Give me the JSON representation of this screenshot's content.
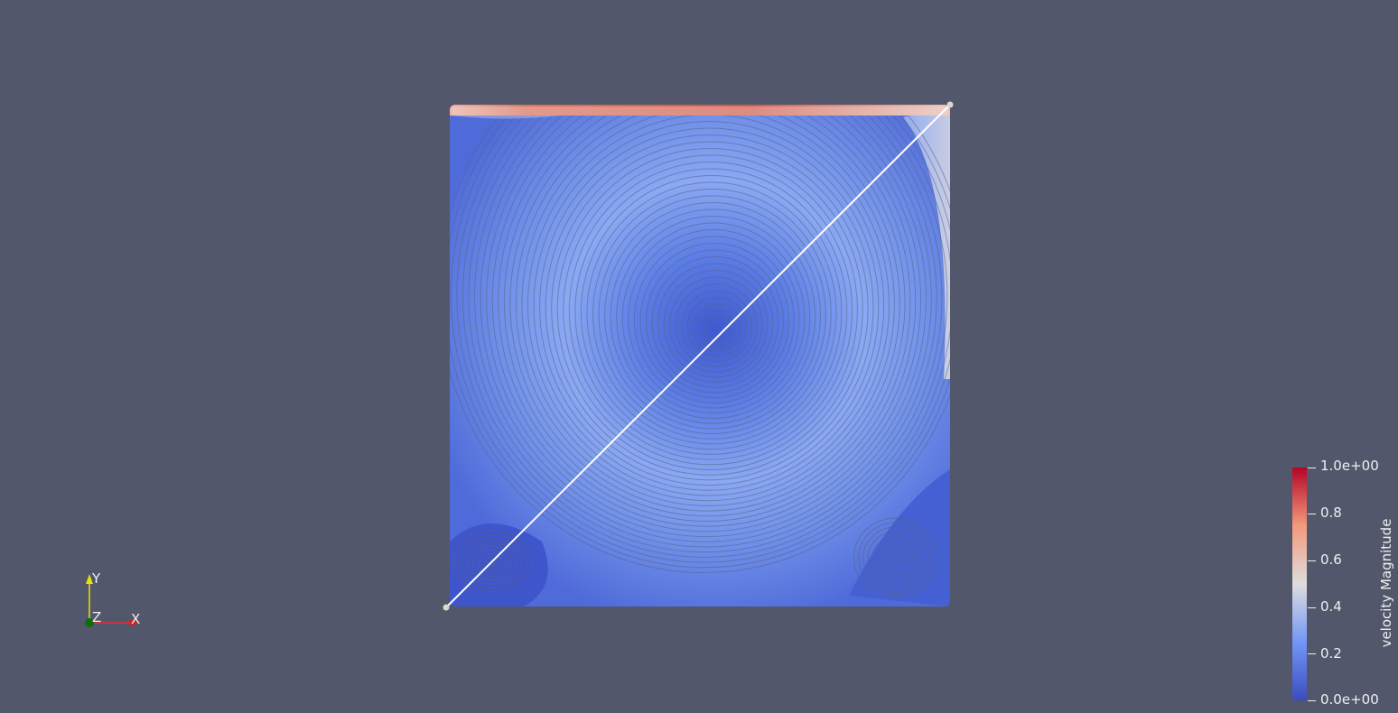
{
  "scene": {
    "background_color": "#52576c",
    "stream_colors": {
      "low": "#3b4cc0",
      "mid_low": "#7396f5",
      "mid": "#dddddd",
      "high": "#b40426"
    },
    "seed_line_color": "#ffffff"
  },
  "orientation_axes": {
    "x_label": "X",
    "y_label": "Y",
    "z_label": "Z"
  },
  "color_legend": {
    "title": "velocity Magnitude",
    "ticks": [
      "1.0e+00",
      "0.8",
      "0.6",
      "0.4",
      "0.2",
      "0.0e+00"
    ],
    "range": [
      0.0,
      1.0
    ],
    "colormap": [
      "#3b4cc0",
      "#7396f5",
      "#dddddd",
      "#f49a7b",
      "#b40426"
    ]
  }
}
